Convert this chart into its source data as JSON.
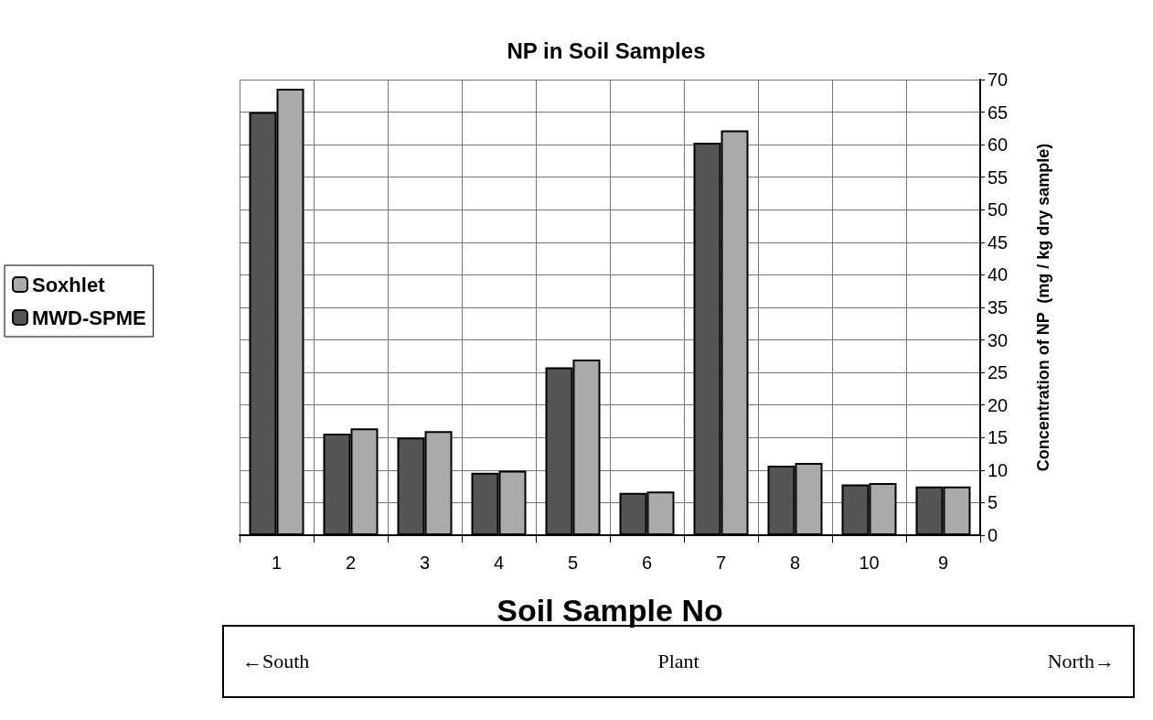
{
  "chart_data": {
    "type": "bar",
    "title": "NP in Soil Samples",
    "xlabel": "Soil Sample No",
    "ylabel": "Concentration of NP  (mg / kg dry sample)",
    "categories": [
      "1",
      "2",
      "3",
      "4",
      "5",
      "6",
      "7",
      "8",
      "10",
      "9"
    ],
    "series": [
      {
        "name": "MWD-SPME",
        "color": "#555555",
        "values": [
          65.0,
          15.6,
          15.0,
          9.6,
          25.8,
          6.5,
          60.3,
          10.7,
          7.8,
          7.5
        ]
      },
      {
        "name": "Soxhlet",
        "color": "#aaaaaa",
        "values": [
          68.6,
          16.4,
          16.0,
          9.9,
          27.0,
          6.7,
          62.2,
          11.1,
          8.0,
          7.5
        ]
      }
    ],
    "ylim": [
      0,
      70
    ],
    "yticks": [
      0,
      5,
      10,
      15,
      20,
      25,
      30,
      35,
      40,
      45,
      50,
      55,
      60,
      65,
      70
    ],
    "grid": true,
    "legend": "left",
    "annotations": [
      "←South",
      "Plant",
      "North→"
    ]
  }
}
